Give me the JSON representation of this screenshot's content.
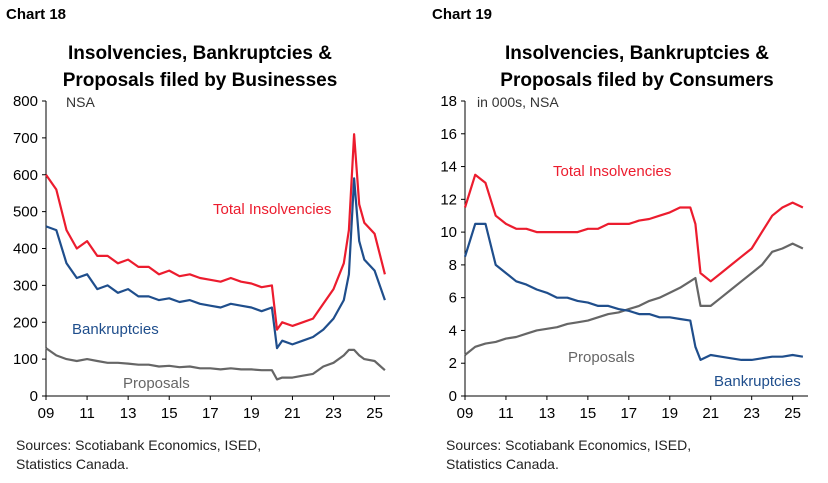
{
  "chart_data": [
    {
      "type": "line",
      "label": "Chart 18",
      "title_line1": "Insolvencies, Bankruptcies &",
      "title_line2": "Proposals filed by Businesses",
      "unit": "NSA",
      "ylim": [
        0,
        800
      ],
      "yticks": [
        0,
        100,
        200,
        300,
        400,
        500,
        600,
        700,
        800
      ],
      "xlim": [
        2009,
        2025.75
      ],
      "xticks": [
        "09",
        "11",
        "13",
        "15",
        "17",
        "19",
        "21",
        "23",
        "25"
      ],
      "colors": {
        "total": "#ec1c2e",
        "bankruptcies": "#1f4e8c",
        "proposals": "#666666"
      },
      "series": [
        {
          "name": "Total Insolvencies",
          "x": [
            2009,
            2009.5,
            2010,
            2010.5,
            2011,
            2011.5,
            2012,
            2012.5,
            2013,
            2013.5,
            2014,
            2014.5,
            2015,
            2015.5,
            2016,
            2016.5,
            2017,
            2017.5,
            2018,
            2018.5,
            2019,
            2019.5,
            2020,
            2020.25,
            2020.5,
            2021,
            2021.5,
            2022,
            2022.5,
            2023,
            2023.5,
            2023.75,
            2024,
            2024.25,
            2024.5,
            2025,
            2025.5
          ],
          "y": [
            600,
            560,
            450,
            400,
            420,
            380,
            380,
            360,
            370,
            350,
            350,
            330,
            340,
            325,
            330,
            320,
            315,
            310,
            320,
            310,
            305,
            295,
            300,
            180,
            200,
            190,
            200,
            210,
            250,
            290,
            360,
            450,
            710,
            520,
            470,
            440,
            330
          ]
        },
        {
          "name": "Bankruptcies",
          "x": [
            2009,
            2009.5,
            2010,
            2010.5,
            2011,
            2011.5,
            2012,
            2012.5,
            2013,
            2013.5,
            2014,
            2014.5,
            2015,
            2015.5,
            2016,
            2016.5,
            2017,
            2017.5,
            2018,
            2018.5,
            2019,
            2019.5,
            2020,
            2020.25,
            2020.5,
            2021,
            2021.5,
            2022,
            2022.5,
            2023,
            2023.5,
            2023.75,
            2024,
            2024.25,
            2024.5,
            2025,
            2025.5
          ],
          "y": [
            460,
            450,
            360,
            320,
            330,
            290,
            300,
            280,
            290,
            270,
            270,
            260,
            265,
            255,
            260,
            250,
            245,
            240,
            250,
            245,
            240,
            230,
            240,
            130,
            150,
            140,
            150,
            160,
            180,
            210,
            260,
            330,
            590,
            420,
            370,
            340,
            260
          ]
        },
        {
          "name": "Proposals",
          "x": [
            2009,
            2009.5,
            2010,
            2010.5,
            2011,
            2011.5,
            2012,
            2012.5,
            2013,
            2013.5,
            2014,
            2014.5,
            2015,
            2015.5,
            2016,
            2016.5,
            2017,
            2017.5,
            2018,
            2018.5,
            2019,
            2019.5,
            2020,
            2020.25,
            2020.5,
            2021,
            2021.5,
            2022,
            2022.5,
            2023,
            2023.5,
            2023.75,
            2024,
            2024.25,
            2024.5,
            2025,
            2025.5
          ],
          "y": [
            130,
            110,
            100,
            95,
            100,
            95,
            90,
            90,
            88,
            85,
            85,
            80,
            82,
            78,
            80,
            75,
            75,
            72,
            75,
            72,
            72,
            70,
            70,
            45,
            50,
            50,
            55,
            60,
            80,
            90,
            110,
            125,
            125,
            110,
            100,
            95,
            70
          ]
        }
      ],
      "sources_line1": "Sources: Scotiabank Economics, ISED,",
      "sources_line2": "Statistics Canada."
    },
    {
      "type": "line",
      "label": "Chart 19",
      "title_line1": "Insolvencies, Bankruptcies &",
      "title_line2": "Proposals filed by Consumers",
      "unit": "in 000s, NSA",
      "ylim": [
        0,
        18
      ],
      "yticks": [
        0,
        2,
        4,
        6,
        8,
        10,
        12,
        14,
        16,
        18
      ],
      "xlim": [
        2009,
        2025.75
      ],
      "xticks": [
        "09",
        "11",
        "13",
        "15",
        "17",
        "19",
        "21",
        "23",
        "25"
      ],
      "colors": {
        "total": "#ec1c2e",
        "bankruptcies": "#1f4e8c",
        "proposals": "#666666"
      },
      "series": [
        {
          "name": "Total Insolvencies",
          "x": [
            2009,
            2009.5,
            2010,
            2010.5,
            2011,
            2011.5,
            2012,
            2012.5,
            2013,
            2013.5,
            2014,
            2014.5,
            2015,
            2015.5,
            2016,
            2016.5,
            2017,
            2017.5,
            2018,
            2018.5,
            2019,
            2019.5,
            2020,
            2020.25,
            2020.5,
            2021,
            2021.5,
            2022,
            2022.5,
            2023,
            2023.5,
            2024,
            2024.5,
            2025,
            2025.5
          ],
          "y": [
            11.5,
            13.5,
            13.0,
            11.0,
            10.5,
            10.2,
            10.2,
            10.0,
            10.0,
            10.0,
            10.0,
            10.0,
            10.2,
            10.2,
            10.5,
            10.5,
            10.5,
            10.7,
            10.8,
            11.0,
            11.2,
            11.5,
            11.5,
            10.5,
            7.5,
            7.0,
            7.5,
            8.0,
            8.5,
            9.0,
            10.0,
            11.0,
            11.5,
            11.8,
            11.5
          ]
        },
        {
          "name": "Bankruptcies",
          "x": [
            2009,
            2009.5,
            2010,
            2010.5,
            2011,
            2011.5,
            2012,
            2012.5,
            2013,
            2013.5,
            2014,
            2014.5,
            2015,
            2015.5,
            2016,
            2016.5,
            2017,
            2017.5,
            2018,
            2018.5,
            2019,
            2019.5,
            2020,
            2020.25,
            2020.5,
            2021,
            2021.5,
            2022,
            2022.5,
            2023,
            2023.5,
            2024,
            2024.5,
            2025,
            2025.5
          ],
          "y": [
            8.5,
            10.5,
            10.5,
            8.0,
            7.5,
            7.0,
            6.8,
            6.5,
            6.3,
            6.0,
            6.0,
            5.8,
            5.7,
            5.5,
            5.5,
            5.3,
            5.2,
            5.0,
            5.0,
            4.8,
            4.8,
            4.7,
            4.6,
            3.0,
            2.2,
            2.5,
            2.4,
            2.3,
            2.2,
            2.2,
            2.3,
            2.4,
            2.4,
            2.5,
            2.4
          ]
        },
        {
          "name": "Proposals",
          "x": [
            2009,
            2009.5,
            2010,
            2010.5,
            2011,
            2011.5,
            2012,
            2012.5,
            2013,
            2013.5,
            2014,
            2014.5,
            2015,
            2015.5,
            2016,
            2016.5,
            2017,
            2017.5,
            2018,
            2018.5,
            2019,
            2019.5,
            2020,
            2020.25,
            2020.5,
            2021,
            2021.5,
            2022,
            2022.5,
            2023,
            2023.5,
            2024,
            2024.5,
            2025,
            2025.5
          ],
          "y": [
            2.5,
            3.0,
            3.2,
            3.3,
            3.5,
            3.6,
            3.8,
            4.0,
            4.1,
            4.2,
            4.4,
            4.5,
            4.6,
            4.8,
            5.0,
            5.1,
            5.3,
            5.5,
            5.8,
            6.0,
            6.3,
            6.6,
            7.0,
            7.2,
            5.5,
            5.5,
            6.0,
            6.5,
            7.0,
            7.5,
            8.0,
            8.8,
            9.0,
            9.3,
            9.0
          ]
        }
      ],
      "sources_line1": "Sources: Scotiabank Economics, ISED,",
      "sources_line2": "Statistics Canada."
    }
  ]
}
